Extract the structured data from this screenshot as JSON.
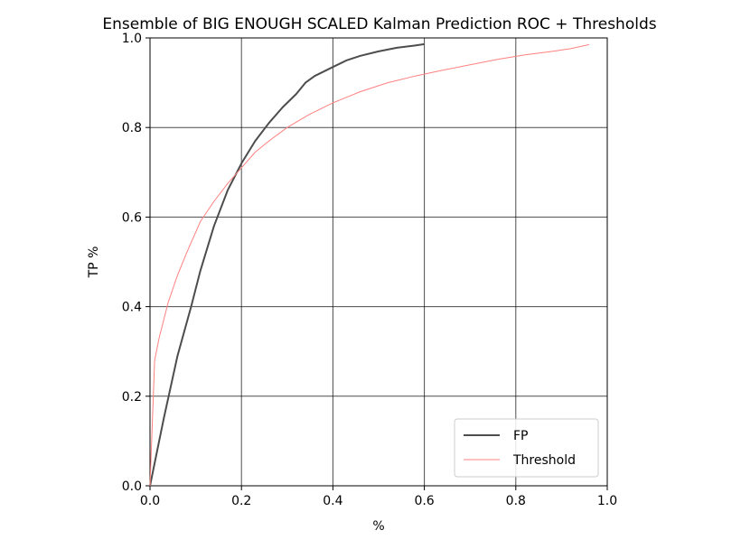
{
  "chart_data": {
    "type": "line",
    "title": "Ensemble of BIG ENOUGH SCALED Kalman Prediction ROC + Thresholds",
    "xlabel": "%",
    "ylabel": "TP %",
    "xlim": [
      0.0,
      1.0
    ],
    "ylim": [
      0.0,
      1.0
    ],
    "xticks": [
      "0.0",
      "0.2",
      "0.4",
      "0.6",
      "0.8",
      "1.0"
    ],
    "yticks": [
      "0.0",
      "0.2",
      "0.4",
      "0.6",
      "0.8",
      "1.0"
    ],
    "grid": true,
    "legend_position": "lower-right",
    "series": [
      {
        "name": "FP",
        "color": "#4d4d4d",
        "x": [
          0.0,
          0.03,
          0.06,
          0.09,
          0.11,
          0.14,
          0.17,
          0.2,
          0.23,
          0.26,
          0.29,
          0.32,
          0.34,
          0.36,
          0.38,
          0.4,
          0.43,
          0.46,
          0.5,
          0.54,
          0.58,
          0.6
        ],
        "y": [
          0.0,
          0.15,
          0.29,
          0.4,
          0.48,
          0.58,
          0.66,
          0.72,
          0.77,
          0.81,
          0.845,
          0.875,
          0.9,
          0.915,
          0.925,
          0.935,
          0.95,
          0.96,
          0.97,
          0.978,
          0.983,
          0.986
        ]
      },
      {
        "name": "Threshold",
        "color": "#ff8080",
        "x": [
          0.0,
          0.01,
          0.02,
          0.04,
          0.06,
          0.08,
          0.11,
          0.14,
          0.17,
          0.2,
          0.23,
          0.26,
          0.3,
          0.35,
          0.4,
          0.46,
          0.52,
          0.58,
          0.64,
          0.7,
          0.76,
          0.82,
          0.88,
          0.92,
          0.96
        ],
        "y": [
          0.0,
          0.28,
          0.33,
          0.41,
          0.47,
          0.52,
          0.59,
          0.635,
          0.675,
          0.71,
          0.745,
          0.77,
          0.8,
          0.83,
          0.855,
          0.88,
          0.9,
          0.915,
          0.928,
          0.94,
          0.952,
          0.962,
          0.97,
          0.976,
          0.985
        ]
      }
    ]
  }
}
